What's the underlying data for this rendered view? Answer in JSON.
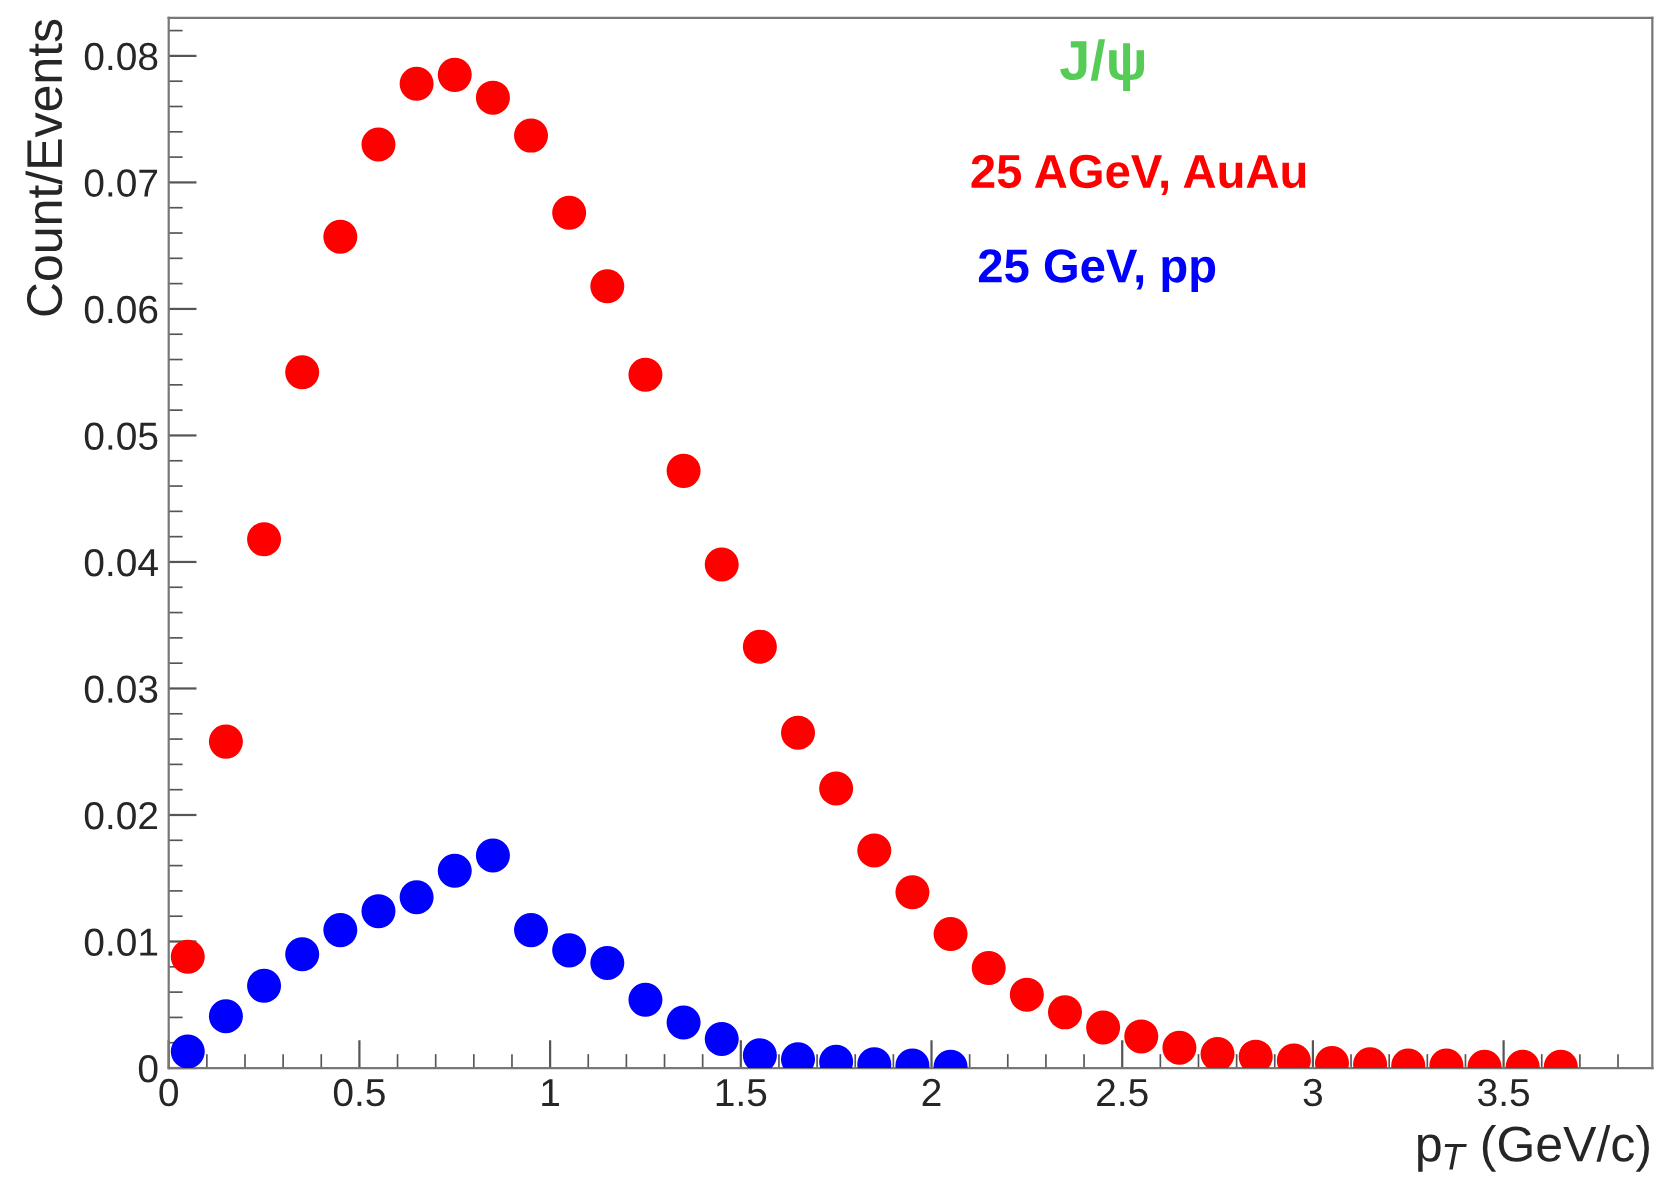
{
  "chart_data": {
    "type": "scatter",
    "title": "J/ψ",
    "xlabel": "p$_{T}$ (GeV/c)",
    "ylabel": "Count/Events",
    "xlim": [
      0,
      3.89
    ],
    "ylim": [
      0,
      0.083
    ],
    "xticks": [
      {
        "value": 0,
        "label": "0"
      },
      0.5,
      1,
      1.5,
      2,
      2.5,
      3,
      3.5
    ],
    "yticks": [
      {
        "value": 0,
        "label": "0"
      },
      0.01,
      0.02,
      0.03,
      0.04,
      0.05,
      0.06,
      0.07,
      0.08
    ],
    "grid": false,
    "legend": false,
    "marker": "circle",
    "line_style": "none",
    "series": [
      {
        "name": "25 AGeV, AuAu",
        "color": "#ff0000",
        "x": [
          0.05,
          0.15,
          0.25,
          0.35,
          0.45,
          0.55,
          0.65,
          0.75,
          0.85,
          0.95,
          1.05,
          1.15,
          1.25,
          1.35,
          1.45,
          1.55,
          1.65,
          1.75,
          1.85,
          1.95,
          2.05,
          2.15,
          2.25,
          2.35,
          2.45,
          2.55,
          2.65,
          2.75,
          2.85,
          2.95,
          3.05,
          3.15,
          3.25,
          3.35,
          3.45,
          3.55,
          3.65
        ],
        "values": [
          0.0088,
          0.0258,
          0.0418,
          0.055,
          0.0657,
          0.073,
          0.0778,
          0.0785,
          0.0767,
          0.0737,
          0.0676,
          0.0618,
          0.0548,
          0.0472,
          0.0398,
          0.0333,
          0.0265,
          0.0221,
          0.0172,
          0.0139,
          0.0106,
          0.0079,
          0.0058,
          0.0044,
          0.0032,
          0.0025,
          0.0016,
          0.0011,
          0.0009,
          0.0006,
          0.0004,
          0.0003,
          0.0002,
          0.0002,
          0.0001,
          0.0001,
          0.0001
        ]
      },
      {
        "name": "25 GeV, pp",
        "color": "#0000ff",
        "x": [
          0.05,
          0.15,
          0.25,
          0.35,
          0.45,
          0.55,
          0.65,
          0.75,
          0.85,
          0.95,
          1.05,
          1.15,
          1.25,
          1.35,
          1.45,
          1.55,
          1.65,
          1.75,
          1.85,
          1.95,
          2.05
        ],
        "values": [
          0.0013,
          0.0041,
          0.0065,
          0.009,
          0.0109,
          0.0124,
          0.0135,
          0.0156,
          0.0168,
          0.0109,
          0.0093,
          0.0083,
          0.0054,
          0.0036,
          0.0023,
          0.001,
          0.0007,
          0.0005,
          0.0003,
          0.0002,
          0.0001
        ]
      }
    ]
  }
}
